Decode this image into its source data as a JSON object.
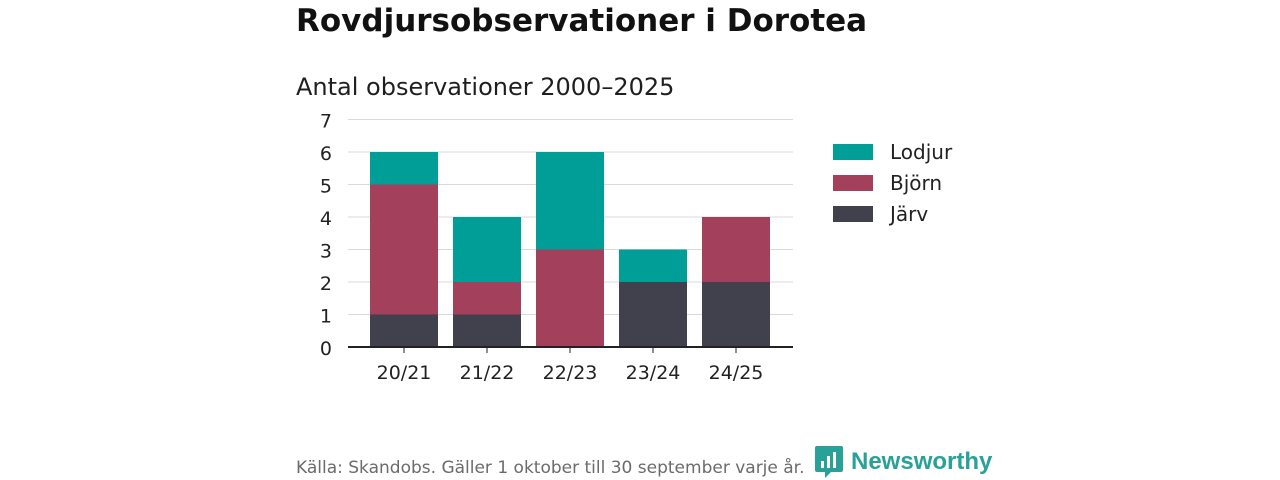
{
  "header": {
    "title": "Rovdjursobservationer i Dorotea"
  },
  "chart_data": {
    "type": "bar",
    "stacked": true,
    "title": "Antal observationer 2000–2025",
    "xlabel": "",
    "ylabel": "",
    "ylim": [
      0,
      7
    ],
    "yticks": [
      0,
      1,
      2,
      3,
      4,
      5,
      6,
      7
    ],
    "categories": [
      "20/21",
      "21/22",
      "22/23",
      "23/24",
      "24/25"
    ],
    "series": [
      {
        "name": "Järv",
        "color": "#41404d",
        "values": [
          1,
          1,
          0,
          2,
          2
        ]
      },
      {
        "name": "Björn",
        "color": "#a3405c",
        "values": [
          4,
          1,
          3,
          0,
          2
        ]
      },
      {
        "name": "Lodjur",
        "color": "#009e96",
        "values": [
          1,
          2,
          3,
          1,
          0
        ]
      }
    ],
    "legend": {
      "placement": "right",
      "order": [
        "Lodjur",
        "Björn",
        "Järv"
      ]
    },
    "grid": true
  },
  "footer": {
    "source": "Källa: Skandobs. Gäller 1 oktober till 30 september varje år.",
    "brand": "Newsworthy",
    "brand_color": "#2aa198",
    "brand_icon": "newsworthy-logo-icon"
  }
}
